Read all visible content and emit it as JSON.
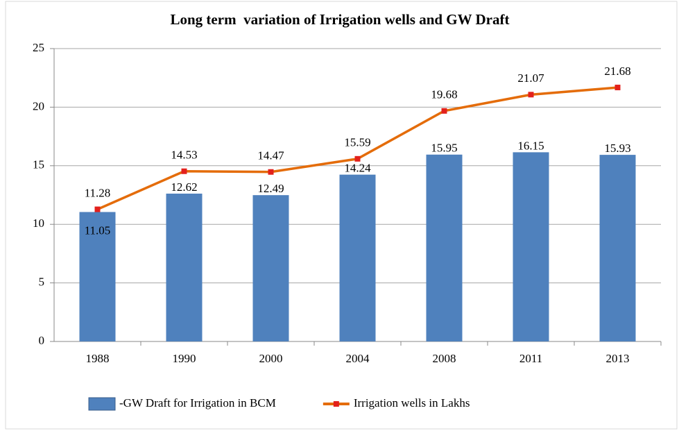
{
  "chart_data": {
    "type": "bar",
    "title": "Long term  variation of Irrigation wells and GW Draft",
    "categories": [
      "1988",
      "1990",
      "2000",
      "2004",
      "2008",
      "2011",
      "2013"
    ],
    "series": [
      {
        "name": "-GW Draft for Irrigation in BCM",
        "type": "bar",
        "color": "#4f81bd",
        "values": [
          11.05,
          12.62,
          12.49,
          14.24,
          15.95,
          16.15,
          15.93
        ]
      },
      {
        "name": "Irrigation wells in Lakhs",
        "type": "line",
        "color": "#e46c0a",
        "values": [
          11.28,
          14.53,
          14.47,
          15.59,
          19.68,
          21.07,
          21.68
        ]
      }
    ],
    "ylim": [
      0,
      25
    ],
    "yticks": [
      0,
      5,
      10,
      15,
      20,
      25
    ],
    "grid": true,
    "legend": "bottom"
  }
}
